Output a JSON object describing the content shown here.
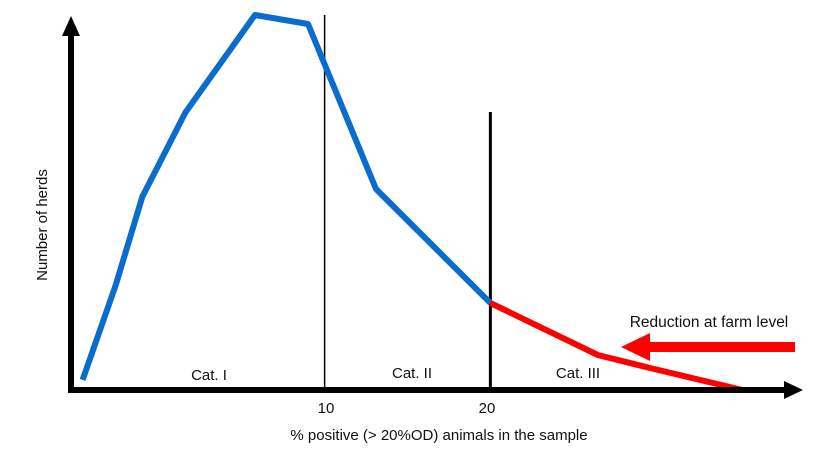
{
  "chart_data": {
    "type": "line",
    "title": "",
    "xlabel": "% positive (> 20%OD) animals in the sample",
    "ylabel": "Number of herds",
    "xlim": [
      -5.3,
      38.8
    ],
    "ylim": [
      0,
      100
    ],
    "x_ticks": [
      "10",
      "20"
    ],
    "x_tick_values": [
      10,
      20
    ],
    "grid": false,
    "series": [
      {
        "color": "#0a6ccc",
        "x": [
          -4.6,
          -2.6,
          -1.0,
          1.6,
          5.8,
          9.0,
          13.1,
          20.0
        ],
        "y": [
          2.7,
          28,
          51.5,
          74,
          100,
          97.6,
          53.6,
          23.2
        ]
      },
      {
        "color": "#ff0000",
        "x": [
          20.0,
          26.5,
          29.6,
          35.2
        ],
        "y": [
          23.2,
          9.3,
          5.9,
          0
        ]
      }
    ],
    "category_dividers": [
      10,
      20
    ],
    "categories": [
      {
        "label": "Cat. I",
        "x": 3
      },
      {
        "label": "Cat. II",
        "x": 15.3
      },
      {
        "label": "Cat. III",
        "x": 25.3
      }
    ],
    "annotation": {
      "text": "Reduction at farm level",
      "arrow_direction": "left",
      "color": "#ff0000"
    }
  }
}
